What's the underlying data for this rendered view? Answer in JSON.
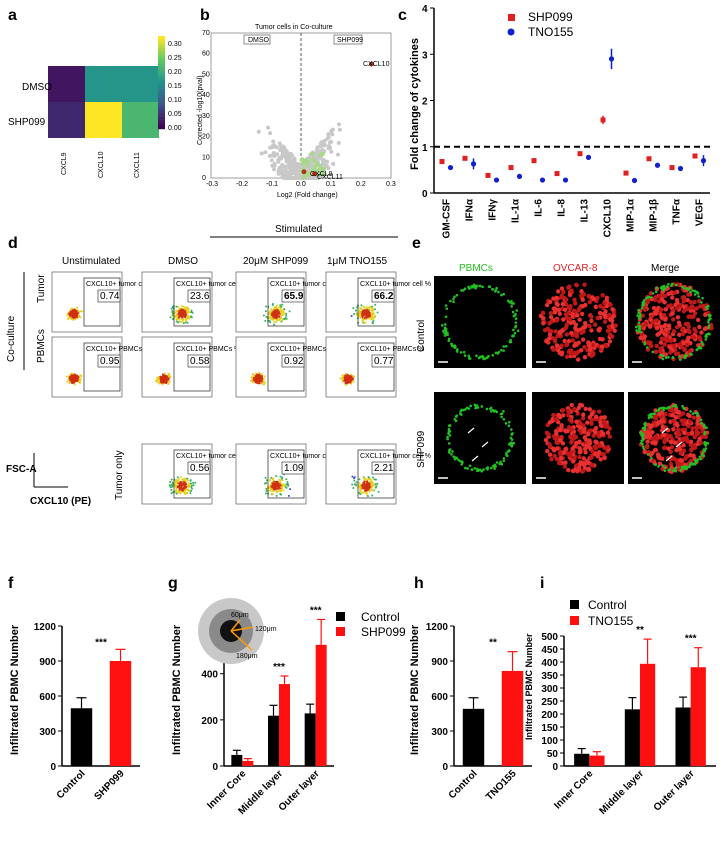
{
  "panels": {
    "a": {
      "label": "a",
      "rows": [
        "DMSO",
        "SHP099"
      ],
      "cols": [
        "CXCL9",
        "CXCL10",
        "CXCL11"
      ],
      "values": [
        [
          0.02,
          0.17,
          0.17
        ],
        [
          0.04,
          0.33,
          0.22
        ]
      ],
      "colorbar_ticks": [
        "0.30",
        "0.25",
        "0.20",
        "0.15",
        "0.10",
        "0.05",
        "0.00"
      ]
    },
    "b": {
      "label": "b",
      "title": "Tumor cells in Co-culture",
      "tag_left": "DMSO",
      "tag_right": "SHP099",
      "xlabel": "Log2 (Fold change)",
      "ylabel": "Corrected -log10(pval)",
      "xticks": [
        "-0.3",
        "-0.2",
        "-0.1",
        "0.0",
        "0.1",
        "0.2",
        "0.3"
      ],
      "yticks": [
        "0",
        "10",
        "20",
        "30",
        "40",
        "50",
        "60",
        "70"
      ],
      "genes": [
        "CXCL10",
        "CXCL9",
        "CXCL11"
      ]
    },
    "c": {
      "label": "c",
      "ylabel": "Fold change of cytokines",
      "yticks": [
        "0",
        "1",
        "2",
        "3",
        "4"
      ],
      "legend": [
        "SHP099",
        "TNO155"
      ],
      "categories": [
        "GM-CSF",
        "IFNα",
        "IFNγ",
        "IL-1α",
        "IL-6",
        "IL-8",
        "IL-13",
        "CXCL10",
        "MIP-1α",
        "MIP-1β",
        "TNFα",
        "VEGF"
      ]
    },
    "d": {
      "label": "d",
      "stimulated": "Stimulated",
      "col_headers": [
        "Unstimulated",
        "DMSO",
        "20μM SHP099",
        "1μM TNO155"
      ],
      "coculture": "Co-culture",
      "row_labels": [
        "Tumor",
        "PBMCs",
        "Tumor only"
      ],
      "tumor_gate": "CXCL10+ tumor cell %",
      "pbmc_gate": "CXCL10+ PBMCs %",
      "tumor_values": [
        "0.74",
        "23.6",
        "65.9",
        "66.2"
      ],
      "pbmc_values": [
        "0.95",
        "0.58",
        "0.92",
        "0.77"
      ],
      "tumor_only_values": [
        "0.56",
        "1.09",
        "2.21"
      ],
      "y_axis": "FSC-A",
      "x_axis": "CXCL10 (PE)"
    },
    "e": {
      "label": "e",
      "col_headers": [
        "PBMCs",
        "OVCAR-8",
        "Merge"
      ],
      "row_labels": [
        "Control",
        "SHP099"
      ],
      "colors": {
        "pbmc": "#22c022",
        "ovcar": "#e02020"
      }
    }
  },
  "chart_data": [
    {
      "panel": "c",
      "type": "scatter",
      "categories": [
        "GM-CSF",
        "IFNα",
        "IFNγ",
        "IL-1α",
        "IL-6",
        "IL-8",
        "IL-13",
        "CXCL10",
        "MIP-1α",
        "MIP-1β",
        "TNFα",
        "VEGF"
      ],
      "series": [
        {
          "name": "SHP099",
          "values": [
            0.68,
            0.75,
            0.38,
            0.55,
            0.7,
            0.42,
            0.85,
            1.58,
            0.43,
            0.74,
            0.55,
            0.8
          ],
          "color": "#e02020"
        },
        {
          "name": "TNO155",
          "values": [
            0.55,
            0.63,
            0.28,
            0.36,
            0.28,
            0.28,
            0.77,
            2.9,
            0.27,
            0.6,
            0.53,
            0.7
          ],
          "color": "#1020d0"
        }
      ],
      "ylabel": "Fold change of cytokines",
      "ylim": [
        0,
        4
      ],
      "reference_line": 1
    },
    {
      "panel": "f",
      "label": "f",
      "type": "bar",
      "categories": [
        "Control",
        "SHP099"
      ],
      "values": [
        495,
        900
      ],
      "errors": [
        90,
        100
      ],
      "colors": [
        "#000000",
        "#ff1010"
      ],
      "ylabel": "Infiltrated PBMC Number",
      "ylim": [
        0,
        1200
      ],
      "yticks": [
        "0",
        "300",
        "600",
        "900",
        "1200"
      ],
      "significance": "***"
    },
    {
      "panel": "g",
      "label": "g",
      "type": "bar",
      "categories": [
        "Inner Core",
        "Middle layer",
        "Outer layer"
      ],
      "series": [
        {
          "name": "Control",
          "values": [
            48,
            218,
            228
          ],
          "errors": [
            20,
            45,
            40
          ],
          "color": "#000000"
        },
        {
          "name": "SHP099",
          "values": [
            22,
            355,
            525
          ],
          "errors": [
            10,
            35,
            110
          ],
          "color": "#ff1010"
        }
      ],
      "ylabel": "Infiltrated PBMC Number",
      "ylim": [
        0,
        650
      ],
      "yticks": [
        "0",
        "200",
        "400",
        "600"
      ],
      "significance": [
        "",
        "***",
        "***"
      ],
      "inset": [
        "60μm",
        "120μm",
        "180μm"
      ]
    },
    {
      "panel": "h",
      "label": "h",
      "type": "bar",
      "categories": [
        "Control",
        "TNO155"
      ],
      "values": [
        490,
        815
      ],
      "errors": [
        95,
        165
      ],
      "colors": [
        "#000000",
        "#ff1010"
      ],
      "ylabel": "Infiltrated PBMC Number",
      "ylim": [
        0,
        1200
      ],
      "yticks": [
        "0",
        "300",
        "600",
        "900",
        "1200"
      ],
      "significance": "**"
    },
    {
      "panel": "i",
      "label": "i",
      "type": "bar",
      "categories": [
        "Inner Core",
        "Middle layer",
        "Outer layer"
      ],
      "series": [
        {
          "name": "Control",
          "values": [
            47,
            218,
            225
          ],
          "errors": [
            20,
            45,
            40
          ],
          "color": "#000000"
        },
        {
          "name": "TNO155",
          "values": [
            40,
            393,
            380
          ],
          "errors": [
            15,
            95,
            75
          ],
          "color": "#ff1010"
        }
      ],
      "ylabel": "Infiltrated PBMC Number",
      "ylim": [
        0,
        500
      ],
      "yticks": [
        "0",
        "50",
        "100",
        "150",
        "200",
        "250",
        "300",
        "350",
        "400",
        "450",
        "500"
      ],
      "significance": [
        "",
        "**",
        "***"
      ]
    }
  ]
}
